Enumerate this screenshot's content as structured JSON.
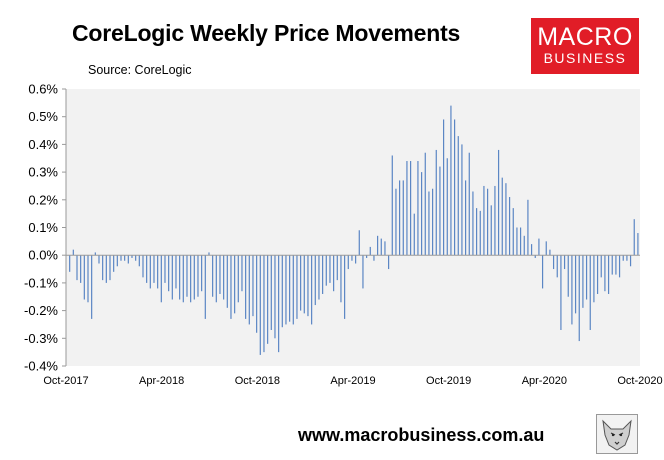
{
  "title": "CoreLogic Weekly Price Movements",
  "source": "Source: CoreLogic",
  "logo": {
    "line1": "MACRO",
    "line2": "BUSINESS",
    "color": "#e11d27"
  },
  "footer": "www.macrobusiness.com.au",
  "icons": {
    "mascot": "wolf-mascot-icon"
  },
  "chart_data": {
    "type": "bar",
    "ylim": [
      -0.4,
      0.6
    ],
    "yticks": [
      -0.4,
      -0.3,
      -0.2,
      -0.1,
      0.0,
      0.1,
      0.2,
      0.3,
      0.4,
      0.5,
      0.6
    ],
    "ytick_labels": [
      "-0.4%",
      "-0.3%",
      "-0.2%",
      "-0.1%",
      "0.0%",
      "0.1%",
      "0.2%",
      "0.3%",
      "0.4%",
      "0.5%",
      "0.6%"
    ],
    "xtick_labels": [
      "Oct-2017",
      "Apr-2018",
      "Oct-2018",
      "Apr-2019",
      "Oct-2019",
      "Apr-2020",
      "Oct-2020"
    ],
    "xlim": [
      "2017-10-01",
      "2020-10-01"
    ],
    "bar_color": "#5b86c4",
    "grid": false,
    "plot_background": "#f2f2f2",
    "frequency": "weekly",
    "start": "2017-10-08",
    "values": [
      -0.06,
      0.02,
      -0.09,
      -0.1,
      -0.16,
      -0.17,
      -0.23,
      0.01,
      -0.03,
      -0.09,
      -0.1,
      -0.09,
      -0.06,
      -0.04,
      -0.02,
      -0.02,
      -0.03,
      -0.01,
      -0.02,
      -0.04,
      -0.08,
      -0.1,
      -0.12,
      -0.1,
      -0.12,
      -0.17,
      -0.1,
      -0.13,
      -0.16,
      -0.12,
      -0.16,
      -0.17,
      -0.15,
      -0.17,
      -0.16,
      -0.15,
      -0.13,
      -0.23,
      0.01,
      -0.15,
      -0.17,
      -0.14,
      -0.16,
      -0.19,
      -0.23,
      -0.21,
      -0.17,
      -0.13,
      -0.23,
      -0.25,
      -0.22,
      -0.28,
      -0.36,
      -0.35,
      -0.32,
      -0.27,
      -0.3,
      -0.35,
      -0.26,
      -0.25,
      -0.24,
      -0.25,
      -0.23,
      -0.2,
      -0.21,
      -0.22,
      -0.25,
      -0.18,
      -0.16,
      -0.14,
      -0.11,
      -0.1,
      -0.13,
      -0.09,
      -0.17,
      -0.23,
      -0.05,
      -0.02,
      -0.03,
      0.09,
      -0.12,
      -0.01,
      0.03,
      -0.02,
      0.07,
      0.06,
      0.05,
      -0.05,
      0.36,
      0.24,
      0.27,
      0.27,
      0.34,
      0.34,
      0.15,
      0.34,
      0.3,
      0.37,
      0.23,
      0.24,
      0.38,
      0.32,
      0.49,
      0.35,
      0.54,
      0.49,
      0.43,
      0.4,
      0.27,
      0.37,
      0.23,
      0.17,
      0.16,
      0.25,
      0.24,
      0.18,
      0.25,
      0.38,
      0.28,
      0.26,
      0.21,
      0.17,
      0.1,
      0.1,
      0.07,
      0.2,
      0.04,
      -0.01,
      0.06,
      -0.12,
      0.05,
      0.02,
      -0.05,
      -0.08,
      -0.27,
      -0.05,
      -0.15,
      -0.25,
      -0.21,
      -0.31,
      -0.19,
      -0.16,
      -0.27,
      -0.17,
      -0.14,
      -0.08,
      -0.13,
      -0.14,
      -0.07,
      -0.07,
      -0.08,
      -0.02,
      -0.02,
      -0.04,
      0.13,
      0.08
    ]
  }
}
